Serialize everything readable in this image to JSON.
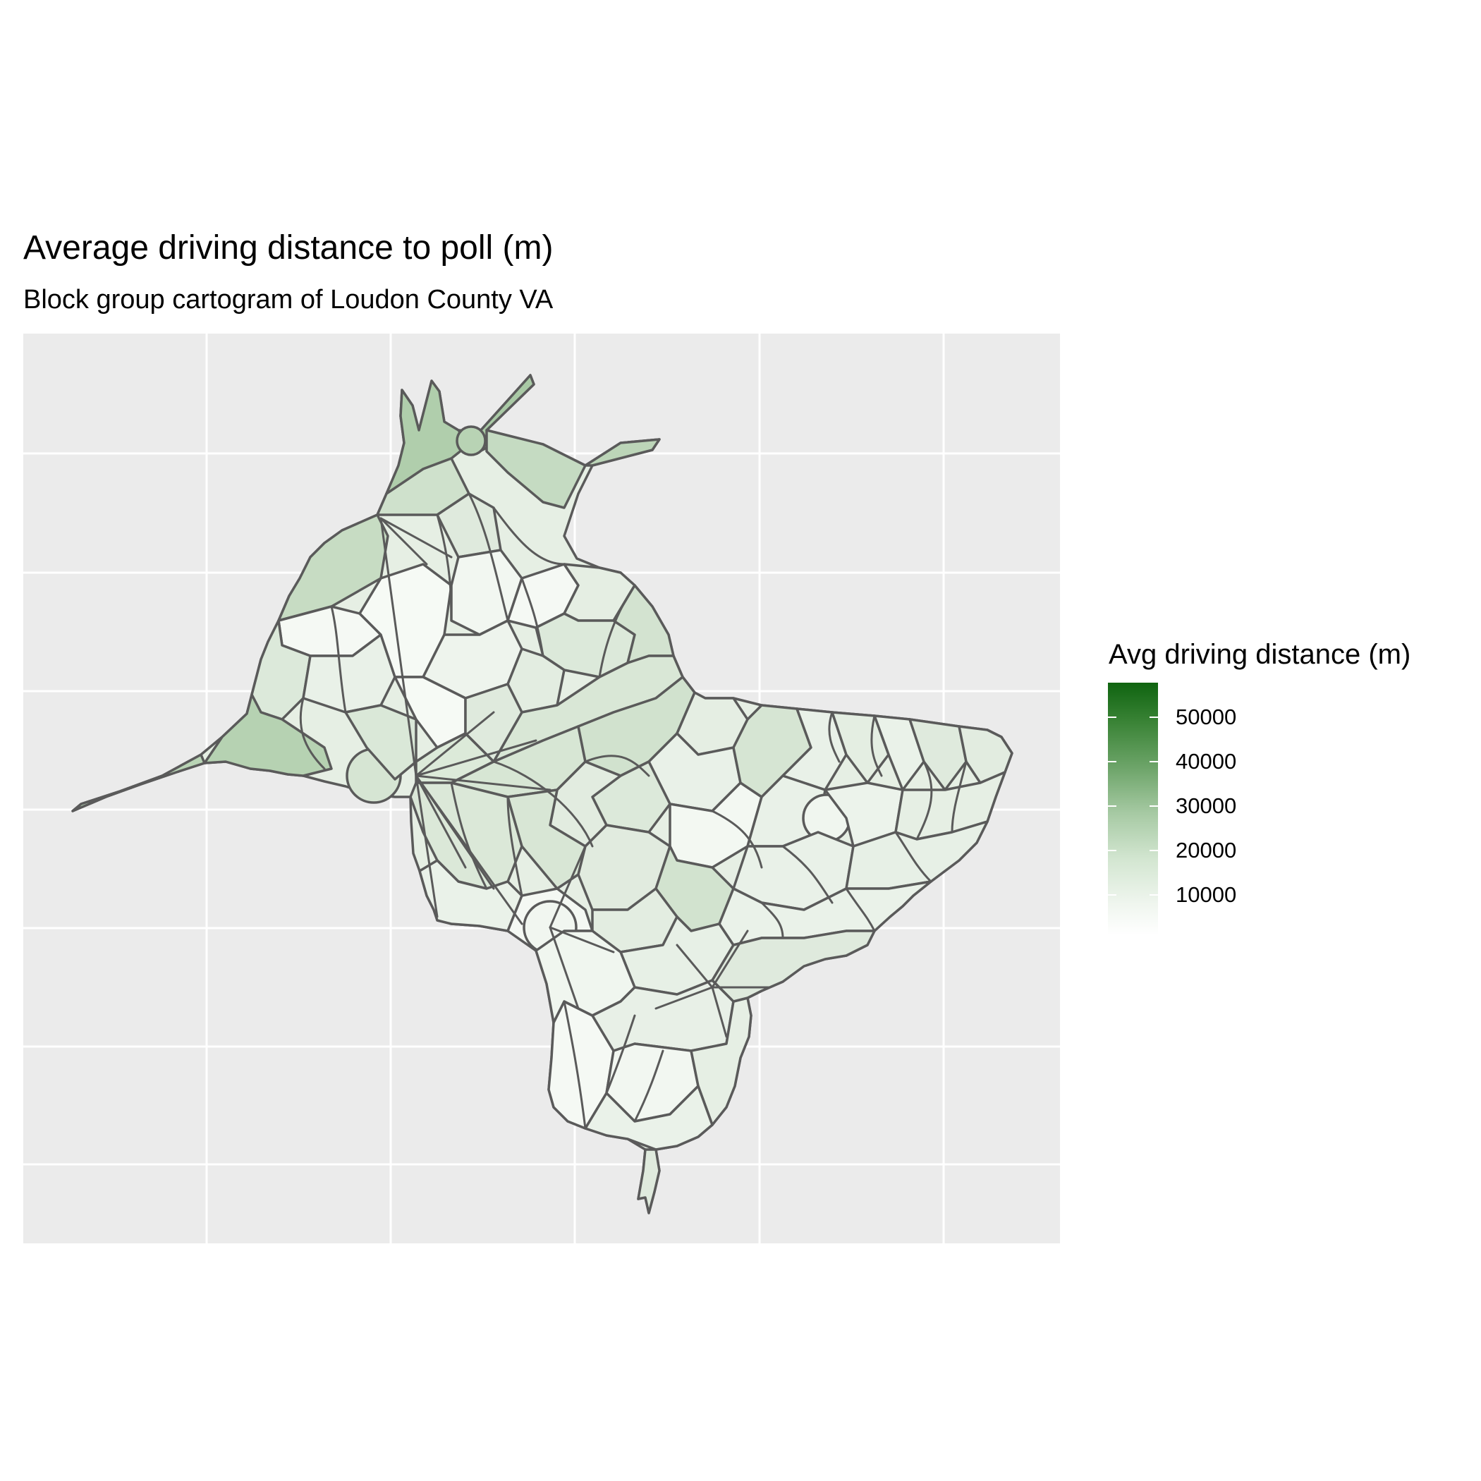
{
  "title": "Average driving distance to poll (m)",
  "subtitle": "Block group cartogram of Loudon County VA",
  "legend": {
    "title": "Avg driving distance (m)",
    "ticks": [
      "50000",
      "40000",
      "30000",
      "20000",
      "10000"
    ],
    "color_low": "#ffffff",
    "color_high": "#0f6410"
  },
  "colors": {
    "panel_background": "#ebebeb",
    "grid": "#ffffff",
    "border": "#5a5a5a",
    "fill_light": "#f2f7f1",
    "fill_mid": "#dce9da",
    "fill_dark": "#b0ceac"
  }
}
